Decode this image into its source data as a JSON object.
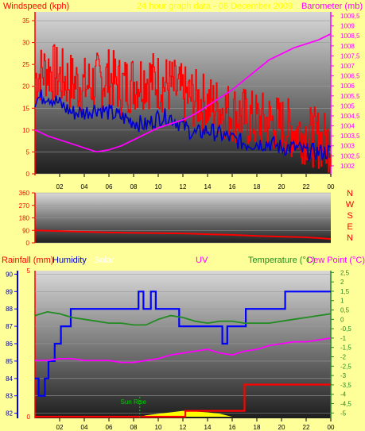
{
  "header": {
    "windspeed_label": "Windspeed (kph)",
    "subtitle": "24 hour graph data - 08 December 2009",
    "barometer_label": "Barometer (mb)"
  },
  "compass": [
    "N",
    "W",
    "S",
    "E",
    "N"
  ],
  "lower_header": {
    "rainfall": "Rainfall (mm)",
    "humidity": "Humidity",
    "solar": "Solar",
    "uv": "UV",
    "temperature": "Temperature (°C)",
    "dewpoint": "Dew Point (°C)"
  },
  "annotation": {
    "sunrise": "Sun Rise"
  },
  "colors": {
    "background": "#ffff99",
    "windspeed": "#ff0000",
    "windspeed_avg": "#0000cc",
    "barometer": "#ff00ff",
    "humidity": "#0000ff",
    "temperature": "#228b22",
    "dewpoint": "#ff00ff",
    "rainfall": "#ff0000",
    "solar": "#ffff00",
    "axis_left": "#ff0000",
    "axis_right": "#ff00ff"
  },
  "chart_data": [
    {
      "type": "line",
      "name": "wind-barometer",
      "xticks": [
        "02",
        "04",
        "06",
        "08",
        "10",
        "12",
        "14",
        "16",
        "18",
        "20",
        "22",
        "00"
      ],
      "y_left_ticks": [
        "0",
        "5",
        "10",
        "15",
        "20",
        "25",
        "30",
        "35"
      ],
      "y_left_range": [
        0,
        37
      ],
      "y_right_ticks": [
        "1002",
        "1002,5",
        "1003",
        "1003,5",
        "1004",
        "1004,5",
        "1005",
        "1005,5",
        "1006",
        "1006,5",
        "1007",
        "1007,5",
        "1008",
        "1008,5",
        "1009",
        "1009,5"
      ],
      "y_right_range": [
        1001.6,
        1009.7
      ],
      "x_range": [
        0,
        24
      ],
      "series": [
        {
          "key": "gust",
          "axis": "left",
          "x": [
            0,
            1,
            2,
            3,
            4,
            5,
            6,
            7,
            8,
            9,
            10,
            11,
            12,
            13,
            14,
            15,
            16,
            17,
            18,
            19,
            20,
            21,
            22,
            23,
            24
          ],
          "y": [
            22,
            24,
            22,
            21,
            20,
            21,
            22,
            20,
            21,
            22,
            21,
            20,
            18,
            17,
            16,
            15,
            14,
            13,
            12,
            12,
            11,
            10,
            9,
            8,
            7
          ]
        },
        {
          "key": "average",
          "axis": "left",
          "x": [
            0,
            1,
            2,
            3,
            4,
            5,
            6,
            7,
            8,
            9,
            10,
            11,
            12,
            13,
            14,
            15,
            16,
            17,
            18,
            19,
            20,
            21,
            22,
            23,
            24
          ],
          "y": [
            17,
            18,
            16,
            14,
            14,
            15,
            14,
            13,
            12,
            11,
            13,
            13,
            11,
            9,
            10,
            9,
            8,
            7,
            7,
            7,
            6,
            6,
            5,
            5,
            5
          ]
        },
        {
          "key": "barometer",
          "axis": "right",
          "x": [
            0,
            1,
            2,
            3,
            4,
            5,
            6,
            7,
            8,
            9,
            10,
            11,
            12,
            13,
            14,
            15,
            16,
            17,
            18,
            19,
            20,
            21,
            22,
            23,
            24
          ],
          "y": [
            1003.8,
            1003.5,
            1003.3,
            1003.1,
            1002.9,
            1002.7,
            1002.8,
            1003.0,
            1003.3,
            1003.6,
            1003.9,
            1004.1,
            1004.3,
            1004.6,
            1005.0,
            1005.4,
            1005.8,
            1006.3,
            1006.8,
            1007.3,
            1007.6,
            1007.9,
            1008.1,
            1008.3,
            1008.6
          ]
        }
      ]
    },
    {
      "type": "line",
      "name": "wind-direction",
      "xticks": [
        "02",
        "04",
        "06",
        "08",
        "10",
        "12",
        "14",
        "16",
        "18",
        "20",
        "22",
        "00"
      ],
      "y_ticks": [
        "0",
        "90",
        "180",
        "270",
        "360"
      ],
      "y_range": [
        0,
        360
      ],
      "x_range": [
        0,
        24
      ],
      "series": [
        {
          "key": "direction",
          "x": [
            0,
            2,
            4,
            6,
            8,
            10,
            12,
            14,
            16,
            18,
            20,
            22,
            23,
            24
          ],
          "y": [
            90,
            85,
            80,
            75,
            72,
            70,
            68,
            62,
            58,
            50,
            45,
            40,
            35,
            28
          ]
        }
      ]
    },
    {
      "type": "line",
      "name": "temp-humidity",
      "xticks": [
        "02",
        "04",
        "06",
        "08",
        "10",
        "12",
        "14",
        "16",
        "18",
        "20",
        "22",
        "00"
      ],
      "y_left_ticks": [
        "82",
        "83",
        "84",
        "85",
        "86",
        "87",
        "88",
        "89",
        "90"
      ],
      "y_left_range": [
        81.8,
        90.2
      ],
      "y_right_ticks": [
        "2,5",
        "2",
        "1,5",
        "1",
        "0,5",
        "0",
        "-0,5",
        "-1",
        "-1,5",
        "-2",
        "-2,5",
        "-3",
        "-3,5",
        "-4",
        "-4,5",
        "-5"
      ],
      "y_right_range": [
        -5.2,
        2.6
      ],
      "x_range": [
        0,
        24
      ],
      "series": [
        {
          "key": "humidity",
          "axis": "left",
          "step": true,
          "x": [
            0,
            0.3,
            0.8,
            1.1,
            1.6,
            2.1,
            2.5,
            2.9,
            4.9,
            5.2,
            8.4,
            8.8,
            9.4,
            9.8,
            11.3,
            11.7,
            12.5,
            15.2,
            15.6,
            16.8,
            17.1,
            19.9,
            20.3,
            24
          ],
          "y": [
            84,
            83,
            84,
            85,
            86,
            87,
            87,
            88,
            88,
            88,
            89,
            88,
            89,
            88,
            88,
            87,
            87,
            86,
            87,
            87,
            88,
            88,
            89,
            89
          ]
        },
        {
          "key": "temperature",
          "axis": "right",
          "x": [
            0,
            1,
            2,
            3,
            4,
            5,
            6,
            7,
            8,
            9,
            10,
            11,
            12,
            13,
            14,
            15,
            16,
            17,
            18,
            19,
            20,
            21,
            22,
            23,
            24
          ],
          "y": [
            0.2,
            0.4,
            0.3,
            0.1,
            0.0,
            -0.1,
            -0.2,
            -0.2,
            -0.3,
            -0.3,
            0.0,
            0.2,
            0.1,
            -0.1,
            -0.2,
            -0.1,
            -0.1,
            -0.2,
            -0.2,
            -0.2,
            -0.1,
            0.0,
            0.1,
            0.2,
            0.3
          ]
        },
        {
          "key": "dewpoint",
          "axis": "right",
          "x": [
            0,
            1,
            2,
            3,
            4,
            5,
            6,
            7,
            8,
            9,
            10,
            11,
            12,
            13,
            14,
            15,
            16,
            17,
            18,
            19,
            20,
            21,
            22,
            23,
            24
          ],
          "y": [
            -2.2,
            -2.2,
            -2.1,
            -2.1,
            -2.2,
            -2.2,
            -2.2,
            -2.3,
            -2.3,
            -2.2,
            -2.1,
            -1.9,
            -1.8,
            -1.7,
            -1.6,
            -1.8,
            -1.9,
            -1.7,
            -1.6,
            -1.4,
            -1.3,
            -1.2,
            -1.2,
            -1.1,
            -1.0
          ]
        },
        {
          "key": "rainfall",
          "axis": "rain",
          "step": true,
          "x": [
            0,
            12,
            12.2,
            16.7,
            17,
            24
          ],
          "y": [
            0,
            0,
            0.2,
            0.2,
            1.1,
            1.1
          ]
        },
        {
          "key": "solar",
          "axis": "rain",
          "x": [
            8.5,
            9,
            10,
            11,
            12,
            13,
            14,
            15,
            15.5,
            16
          ],
          "y": [
            0,
            0.05,
            0.1,
            0.15,
            0.2,
            0.18,
            0.15,
            0.1,
            0.05,
            0
          ]
        }
      ],
      "sunrise_hour": 8.5
    }
  ]
}
